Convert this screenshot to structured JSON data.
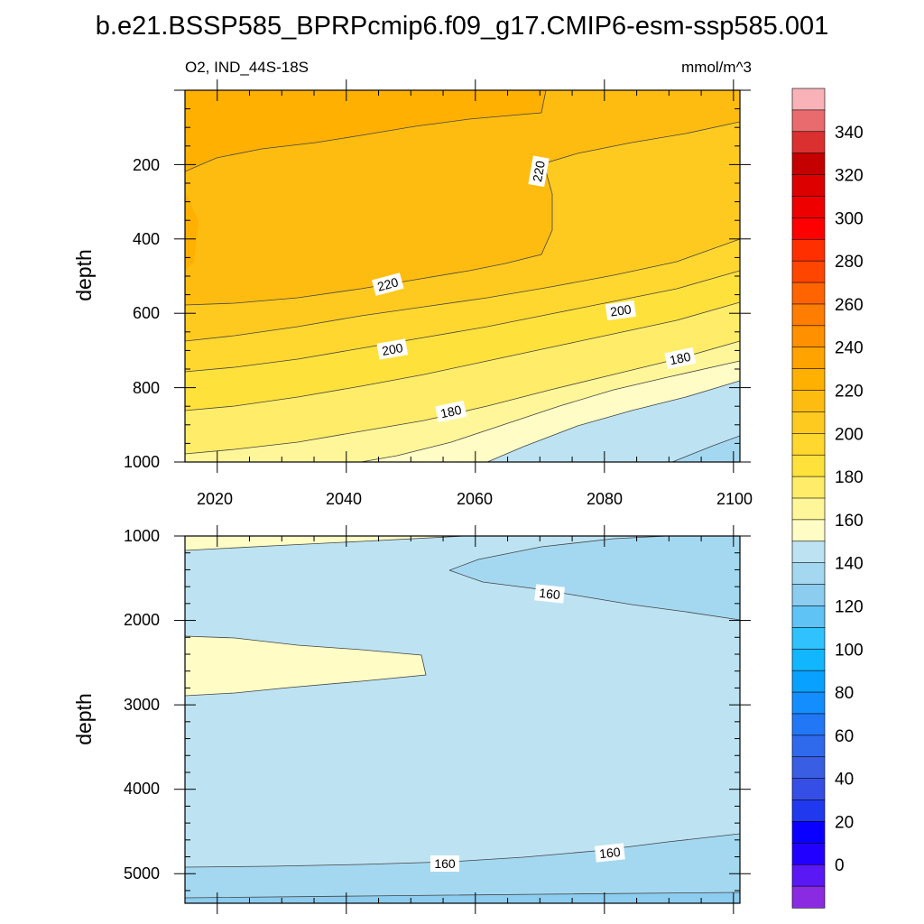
{
  "title": "b.e21.BSSP585_BPRPcmip6.f09_g17.CMIP6-esm-ssp585.001",
  "chart_data": {
    "type": "contour",
    "variable_label": "O2, IND_44S-18S",
    "units_label": "mmol/m^3",
    "x_ticks": [
      "2020",
      "2040",
      "2060",
      "2080",
      "2100"
    ],
    "x_range": [
      2015,
      2101
    ],
    "panels": [
      {
        "name": "upper",
        "ylabel": "depth",
        "y_range": [
          0,
          1000
        ],
        "y_ticks": [
          "200",
          "400",
          "600",
          "800",
          "1000"
        ],
        "contour_labels": [
          "220",
          "220",
          "200",
          "200",
          "180",
          "180"
        ]
      },
      {
        "name": "lower",
        "ylabel": "depth",
        "y_range": [
          1000,
          5350
        ],
        "y_ticks": [
          "1000",
          "2000",
          "3000",
          "4000",
          "5000"
        ],
        "contour_labels": [
          "160",
          "160",
          "160"
        ]
      }
    ],
    "colorbar": {
      "labels": [
        "340",
        "320",
        "300",
        "280",
        "260",
        "240",
        "220",
        "200",
        "180",
        "160",
        "140",
        "120",
        "100",
        "80",
        "60",
        "40",
        "20",
        "0"
      ],
      "colors": [
        "#f9b3b8",
        "#ea6b6d",
        "#db3030",
        "#c50000",
        "#dc0000",
        "#ef0000",
        "#ff0000",
        "#ff2f00",
        "#ff4600",
        "#ff6400",
        "#ff7d00",
        "#ff9000",
        "#ffa300",
        "#ffb000",
        "#ffbc10",
        "#ffca20",
        "#ffd72e",
        "#ffe13c",
        "#ffec68",
        "#fff699",
        "#fffcc6",
        "#bde3f3",
        "#a4d8f1",
        "#8cccee",
        "#5fc3f5",
        "#30c2ff",
        "#12b6ff",
        "#08a1ff",
        "#148eff",
        "#2277f7",
        "#2f6aec",
        "#3a5ee3",
        "#354fe6",
        "#2038ee",
        "#0a00ff",
        "#2200ff",
        "#5a18f5",
        "#8a2be2"
      ]
    }
  }
}
